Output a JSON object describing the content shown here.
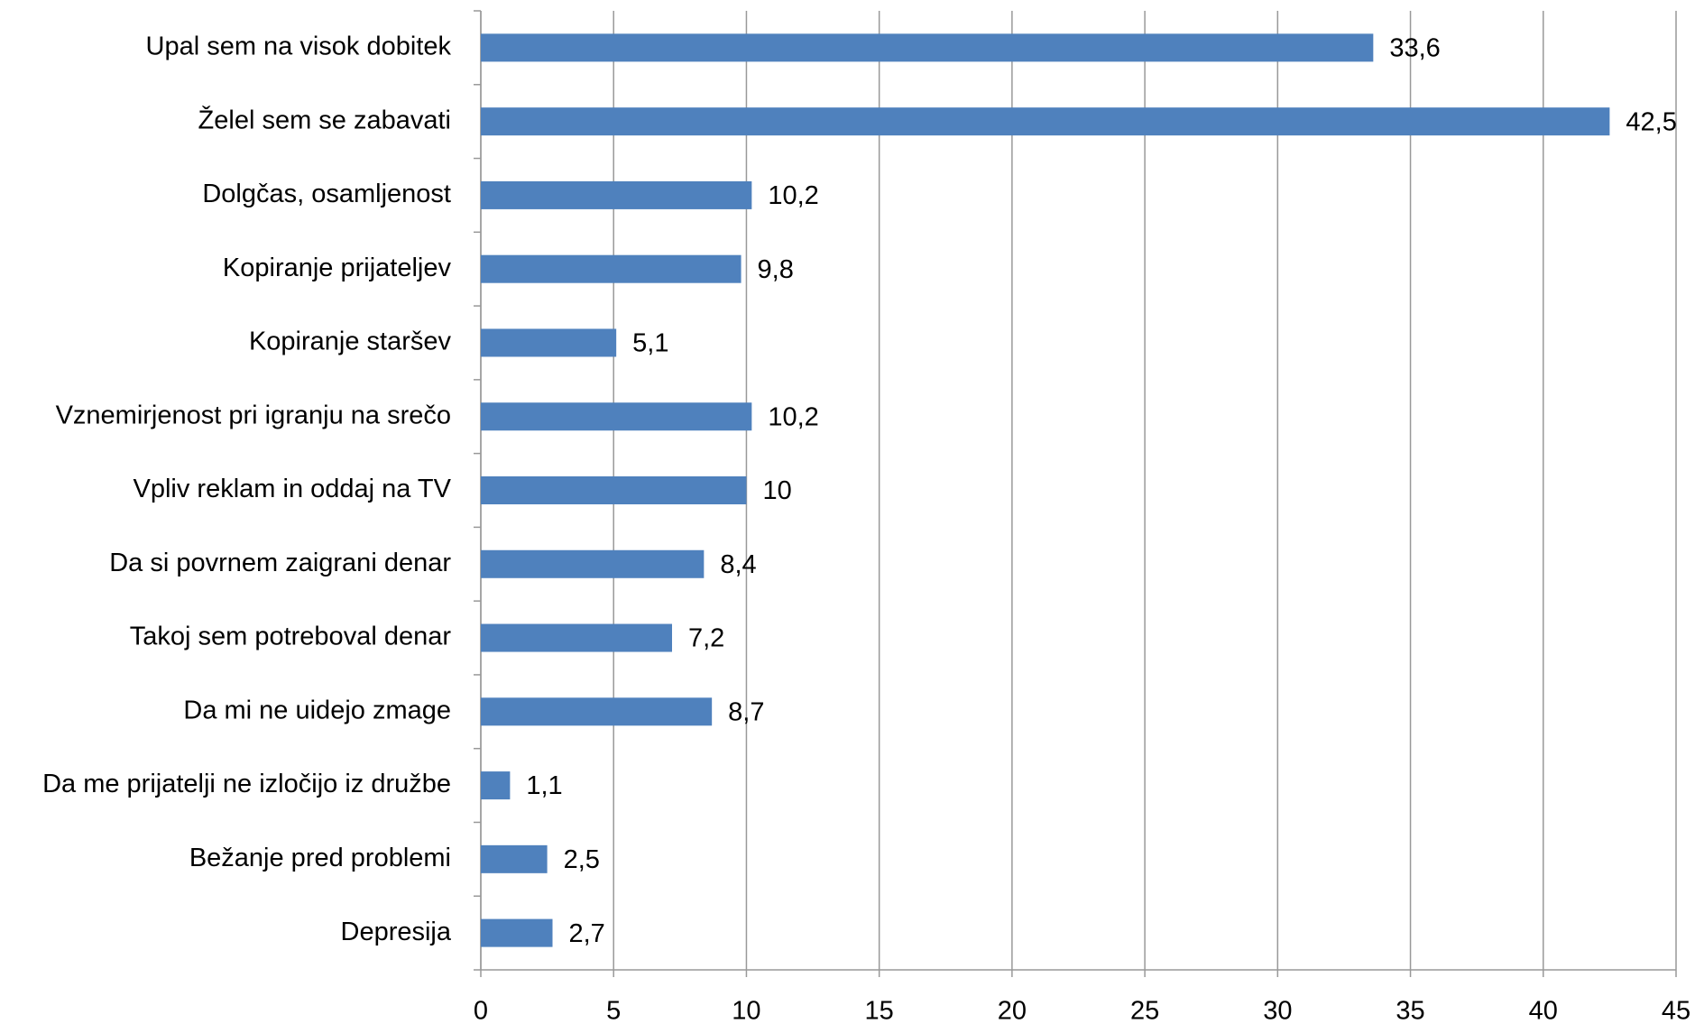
{
  "chart_data": {
    "type": "barh",
    "categories": [
      "Upal sem na visok dobitek",
      "Želel sem se zabavati",
      "Dolgčas, osamljenost",
      "Kopiranje prijateljev",
      "Kopiranje staršev",
      "Vznemirjenost pri igranju na srečo",
      "Vpliv reklam in oddaj na TV",
      "Da si povrnem zaigrani denar",
      "Takoj sem potreboval denar",
      "Da mi ne uidejo zmage",
      "Da me prijatelji ne izločijo iz družbe",
      "Bežanje pred problemi",
      "Depresija"
    ],
    "values": [
      33.6,
      42.5,
      10.2,
      9.8,
      5.1,
      10.2,
      10,
      8.4,
      7.2,
      8.7,
      1.1,
      2.5,
      2.7
    ],
    "value_labels": [
      "33,6",
      "42,5",
      "10,2",
      "9,8",
      "5,1",
      "10,2",
      "10",
      "8,4",
      "7,2",
      "8,7",
      "1,1",
      "2,5",
      "2,7"
    ],
    "color": "#4f81bd",
    "xlim": [
      0,
      45
    ],
    "xticks": [
      0,
      5,
      10,
      15,
      20,
      25,
      30,
      35,
      40,
      45
    ],
    "grid": true
  }
}
